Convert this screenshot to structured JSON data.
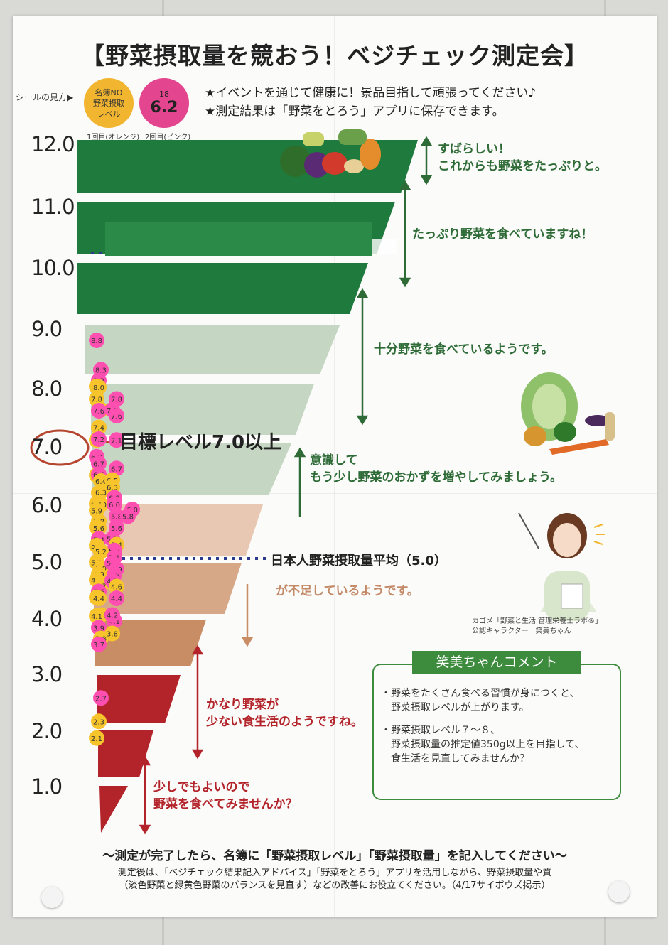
{
  "title": "【野菜摂取量を競おう！ベジチェック測定会】",
  "legend": {
    "label": "シールの見方▶",
    "orange_line1": "名簿NO",
    "orange_line2": "野菜摂取",
    "orange_line3": "レベル",
    "orange_caption": "1回目(オレンジ)",
    "pink_small": "18",
    "pink_big": "6.2",
    "pink_caption": "2回目(ピンク)"
  },
  "notes": {
    "line1": "★イベントを通じて健康に！景品目指して頑張ってください♪",
    "line2": "★測定結果は「野菜をとろう」アプリに保存できます。"
  },
  "y_axis": [
    "12.0",
    "11.0",
    "10.0",
    "9.0",
    "8.0",
    "7.0",
    "6.0",
    "5.0",
    "4.0",
    "3.0",
    "2.0",
    "1.0"
  ],
  "bands": {
    "top_line1": "すばらしい！",
    "top_line2": "これからも野菜をたっぷりと。",
    "plenty": "たっぷり野菜を食べていますね！",
    "enough": "十分野菜を食べているようです。",
    "aware_line1": "意識して",
    "aware_line2": "もう少し野菜のおかずを増やしてみましょう。",
    "low": "が不足しているようです。",
    "very_low_line1": "かなり野菜が",
    "very_low_line2": "少ない食生活のようですね。",
    "min_line1": "少しでもよいので",
    "min_line2": "野菜を食べてみませんか？"
  },
  "target": "目標レベル7.0以上",
  "average": "日本人野菜摂取量平均（5.0）",
  "credit": {
    "line1": "カゴメ「野菜と生活 管理栄養士ラボ®」",
    "line2": "公認キャラクター　笑美ちゃん"
  },
  "comment": {
    "heading": "笑美ちゃんコメント",
    "p1_line1": "・野菜をたくさん食べる習慣が身につくと、",
    "p1_line2": "　野菜摂取レベルが上がります。",
    "p2_line1": "・野菜摂取レベル７～８、",
    "p2_line2": "　野菜摂取量の推定値350g以上を目指して、",
    "p2_line3": "　食生活を見直してみませんか？"
  },
  "footer": {
    "line1": "～測定が完了したら、名簿に「野菜摂取レベル」「野菜摂取量」を記入してください～",
    "line2": "測定後は、「ベジチェック結果記入アドバイス」「野菜をとろう」アプリを活用しながら、野菜摂取量や質",
    "line3": "（淡色野菜と緑黄色野菜のバランスを見直す）などの改善にお役立てください。（4/17サイボウズ掲示）"
  },
  "stickers": [
    {
      "v": "8.8",
      "c": "p"
    },
    {
      "v": "8.2",
      "c": "p"
    },
    {
      "v": "8.3",
      "c": "p"
    },
    {
      "v": "8.1",
      "c": "o"
    },
    {
      "v": "8.0",
      "c": "o"
    },
    {
      "v": "7.7",
      "c": "o"
    },
    {
      "v": "7.8",
      "c": "o"
    },
    {
      "v": "7.4",
      "c": "o"
    },
    {
      "v": "7.8",
      "c": "p"
    },
    {
      "v": "7.7",
      "c": "p"
    },
    {
      "v": "7.6",
      "c": "p"
    },
    {
      "v": "7.6",
      "c": "p"
    },
    {
      "v": "7.1",
      "c": "o"
    },
    {
      "v": "7.2",
      "c": "p"
    },
    {
      "v": "7.1",
      "c": "p"
    },
    {
      "v": "6.9",
      "c": "p"
    },
    {
      "v": "6.7",
      "c": "p"
    },
    {
      "v": "6.7",
      "c": "p"
    },
    {
      "v": "6.5",
      "c": "o"
    },
    {
      "v": "6.6",
      "c": "p"
    },
    {
      "v": "6.4",
      "c": "o"
    },
    {
      "v": "6.5",
      "c": "o"
    },
    {
      "v": "6.2",
      "c": "o"
    },
    {
      "v": "6.3",
      "c": "o"
    },
    {
      "v": "6.3",
      "c": "o"
    },
    {
      "v": "6.2",
      "c": "p"
    },
    {
      "v": "6.0",
      "c": "o"
    },
    {
      "v": "6.1",
      "c": "o"
    },
    {
      "v": "6.0",
      "c": "p"
    },
    {
      "v": "6.0",
      "c": "p"
    },
    {
      "v": "5.9",
      "c": "o"
    },
    {
      "v": "5.8",
      "c": "o"
    },
    {
      "v": "5.8",
      "c": "p"
    },
    {
      "v": "5.7",
      "c": "o"
    },
    {
      "v": "5.6",
      "c": "o"
    },
    {
      "v": "5.7",
      "c": "p"
    },
    {
      "v": "5.8",
      "c": "p"
    },
    {
      "v": "5.5",
      "c": "p"
    },
    {
      "v": "5.6",
      "c": "p"
    },
    {
      "v": "5.5",
      "c": "p"
    },
    {
      "v": "5.4",
      "c": "p"
    },
    {
      "v": "5.4",
      "c": "o"
    },
    {
      "v": "5.3",
      "c": "o"
    },
    {
      "v": "5.3",
      "c": "p"
    },
    {
      "v": "5.2",
      "c": "o"
    },
    {
      "v": "5.1",
      "c": "o"
    },
    {
      "v": "5.1",
      "c": "p"
    },
    {
      "v": "5.0",
      "c": "o"
    },
    {
      "v": "5.0",
      "c": "p"
    },
    {
      "v": "4.9",
      "c": "o"
    },
    {
      "v": "4.9",
      "c": "p"
    },
    {
      "v": "4.8",
      "c": "o"
    },
    {
      "v": "4.8",
      "c": "p"
    },
    {
      "v": "4.7",
      "c": "o"
    },
    {
      "v": "4.7",
      "c": "p"
    },
    {
      "v": "4.6",
      "c": "p"
    },
    {
      "v": "4.6",
      "c": "o"
    },
    {
      "v": "4.5",
      "c": "o"
    },
    {
      "v": "4.4",
      "c": "o"
    },
    {
      "v": "4.2",
      "c": "o"
    },
    {
      "v": "4.1",
      "c": "o"
    },
    {
      "v": "4.1",
      "c": "p"
    },
    {
      "v": "4.4",
      "c": "p"
    },
    {
      "v": "4.2",
      "c": "p"
    },
    {
      "v": "3.9",
      "c": "p"
    },
    {
      "v": "3.8",
      "c": "o"
    },
    {
      "v": "3.8",
      "c": "o"
    },
    {
      "v": "3.7",
      "c": "p"
    },
    {
      "v": "2.7",
      "c": "p"
    },
    {
      "v": "2.1",
      "c": "o"
    },
    {
      "v": "2.3",
      "c": "o"
    }
  ]
}
